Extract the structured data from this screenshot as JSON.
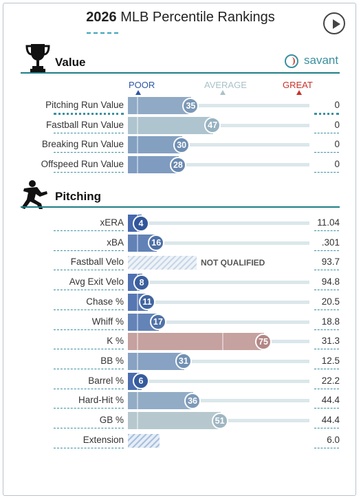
{
  "header": {
    "year": "2026",
    "title": "MLB Percentile Rankings"
  },
  "brand": {
    "name": "savant"
  },
  "scale": {
    "poor": "POOR",
    "average": "AVERAGE",
    "great": "GREAT"
  },
  "colors": {
    "accent": "#1e7d86",
    "poor": "#3a66b0",
    "average": "#b9cfd6",
    "great": "#d0453a"
  },
  "value_section": {
    "title": "Value",
    "rows": [
      {
        "label": "Pitching Run Value",
        "percentile": 35,
        "value": "0"
      },
      {
        "label": "Fastball Run Value",
        "percentile": 47,
        "value": "0"
      },
      {
        "label": "Breaking Run Value",
        "percentile": 30,
        "value": "0"
      },
      {
        "label": "Offspeed Run Value",
        "percentile": 28,
        "value": "0"
      }
    ]
  },
  "pitching_section": {
    "title": "Pitching",
    "not_qualified_label": "NOT QUALIFIED",
    "rows": [
      {
        "label": "xERA",
        "percentile": 4,
        "value": "11.04"
      },
      {
        "label": "xBA",
        "percentile": 16,
        "value": ".301"
      },
      {
        "label": "Fastball Velo",
        "percentile": null,
        "value": "93.7",
        "status": "not_qualified"
      },
      {
        "label": "Avg Exit Velo",
        "percentile": 8,
        "value": "94.8"
      },
      {
        "label": "Chase %",
        "percentile": 11,
        "value": "20.5"
      },
      {
        "label": "Whiff %",
        "percentile": 17,
        "value": "18.8"
      },
      {
        "label": "K %",
        "percentile": 75,
        "value": "31.3"
      },
      {
        "label": "BB %",
        "percentile": 31,
        "value": "12.5"
      },
      {
        "label": "Barrel %",
        "percentile": 6,
        "value": "22.2"
      },
      {
        "label": "Hard-Hit %",
        "percentile": 36,
        "value": "44.4"
      },
      {
        "label": "GB %",
        "percentile": 51,
        "value": "44.4"
      },
      {
        "label": "Extension",
        "percentile": null,
        "value": "6.0",
        "status": "low"
      }
    ]
  },
  "icons": {
    "value": "trophy-icon",
    "pitching": "pitcher-icon",
    "play": "play-icon",
    "brand": "baseball-icon"
  }
}
